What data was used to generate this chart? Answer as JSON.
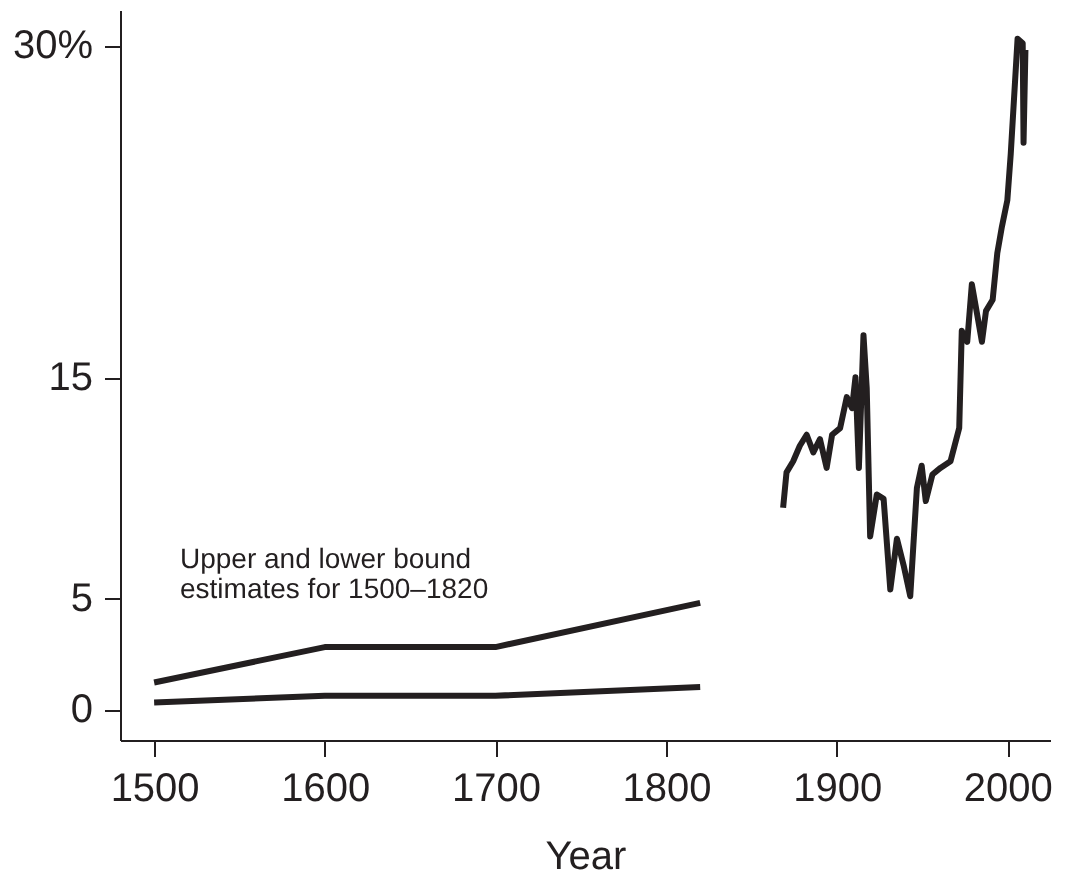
{
  "chart_data": {
    "type": "line",
    "xlabel": "Year",
    "xlim": [
      1480,
      2025
    ],
    "xticks": [
      1500,
      1600,
      1700,
      1800,
      1900,
      2000
    ],
    "ylim": [
      -1.4,
      31.6
    ],
    "yticks": [
      0,
      5,
      15,
      {
        "value": 30,
        "label": "30%"
      }
    ],
    "grid": false,
    "marker": "none",
    "line_style": "solid",
    "annotations": [
      "Upper and lower bound estimates for 1500–1820"
    ],
    "series": [
      {
        "color": "#231f20",
        "x": [
          1500,
          1600,
          1700,
          1820
        ],
        "values": [
          1.2,
          2.8,
          2.8,
          4.8
        ]
      },
      {
        "color": "#231f20",
        "x": [
          1500,
          1600,
          1700,
          1820
        ],
        "values": [
          0.3,
          0.6,
          0.6,
          1.0
        ]
      },
      {
        "color": "#231f20",
        "x": [
          1868.6,
          1870.6,
          1874.5,
          1878.4,
          1882.4,
          1886.3,
          1890.2,
          1894.1,
          1897.3,
          1902,
          1905.9,
          1909,
          1911,
          1913,
          1915.7,
          1917.6,
          1919.6,
          1923.5,
          1927.5,
          1931.4,
          1935.3,
          1939.2,
          1943.1,
          1947,
          1949.8,
          1952.2,
          1956.1,
          1960.8,
          1966.7,
          1971.8,
          1973.3,
          1976.5,
          1979.2,
          1982.4,
          1985.1,
          1987.5,
          1991.4,
          1994.1,
          1996.8,
          2000,
          2002,
          2006,
          2009,
          2009.5,
          2010.6
        ],
        "values": [
          9.1,
          10.7,
          11.2,
          11.9,
          12.4,
          11.6,
          12.2,
          10.9,
          12.4,
          12.7,
          14.1,
          13.6,
          15.0,
          10.9,
          16.9,
          14.5,
          7.8,
          9.7,
          9.5,
          5.4,
          7.7,
          6.5,
          5.1,
          10.0,
          11.0,
          9.4,
          10.6,
          10.9,
          11.2,
          12.7,
          17.1,
          16.6,
          19.2,
          17.8,
          16.6,
          18.0,
          18.5,
          20.6,
          21.8,
          23.0,
          25.1,
          30.3,
          30.1,
          25.6,
          29.8
        ]
      }
    ]
  }
}
